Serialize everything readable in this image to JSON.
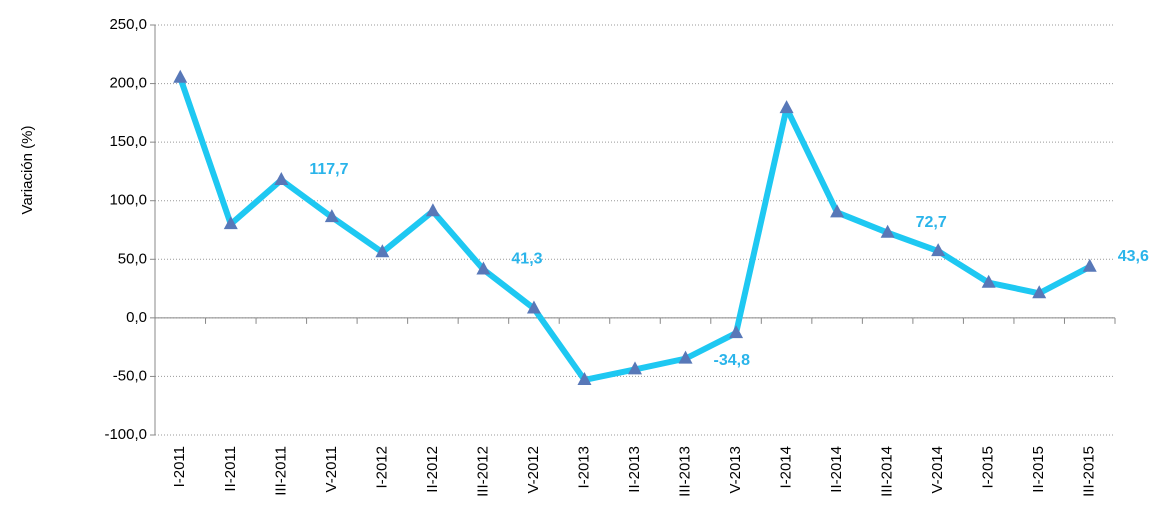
{
  "chart_data": {
    "type": "line",
    "y_label": "Variación (%)",
    "categories": [
      "I-2011",
      "II-2011",
      "III-2011",
      "V-2011",
      "I-2012",
      "II-2012",
      "III-2012",
      "V-2012",
      "I-2013",
      "II-2013",
      "III-2013",
      "V-2013",
      "I-2014",
      "II-2014",
      "III-2014",
      "V-2014",
      "I-2015",
      "II-2015",
      "III-2015"
    ],
    "series": [
      {
        "name": "Variación",
        "color": "#1ec8f2",
        "marker_color": "#5878b8",
        "values": [
          205,
          80,
          117.7,
          86,
          56,
          91,
          41.3,
          8,
          -53,
          -44,
          -34.8,
          -13,
          179,
          90,
          72.7,
          57,
          30,
          21,
          43.6
        ],
        "value_labels": [
          null,
          null,
          "117,7",
          null,
          null,
          null,
          "41,3",
          null,
          null,
          null,
          "-34,8",
          null,
          null,
          null,
          "72,7",
          null,
          null,
          null,
          "43,6"
        ]
      }
    ],
    "ylim": [
      -100,
      250
    ],
    "yticks": [
      {
        "value": -100,
        "label": "-100,0"
      },
      {
        "value": -50,
        "label": "-50,0"
      },
      {
        "value": 0,
        "label": "0,0"
      },
      {
        "value": 50,
        "label": "50,0"
      },
      {
        "value": 100,
        "label": "100,0"
      },
      {
        "value": 150,
        "label": "150,0"
      },
      {
        "value": 200,
        "label": "200,0"
      },
      {
        "value": 250,
        "label": "250,0"
      }
    ],
    "grid": true
  }
}
